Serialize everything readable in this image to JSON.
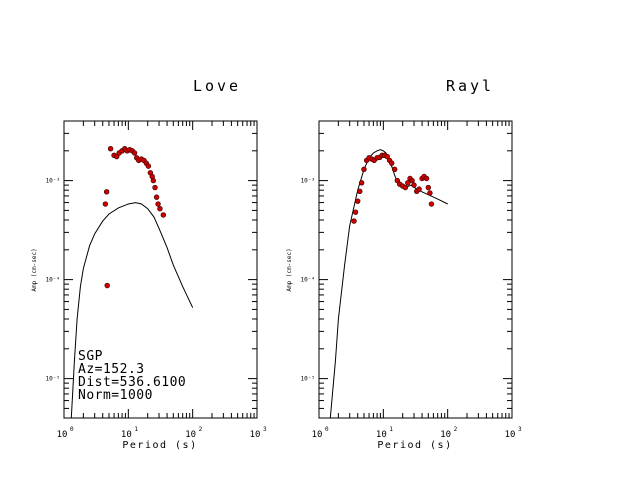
{
  "chart_data": [
    {
      "type": "scatter",
      "title": "Love",
      "xlabel": "Period (s)",
      "ylabel": "Amp (cm-sec)",
      "xscale": "log",
      "yscale": "log",
      "xlim": [
        1,
        1000
      ],
      "ylim": [
        4e-06,
        0.004
      ],
      "x_ticks": [
        {
          "base": "10",
          "exp": "0"
        },
        {
          "base": "10",
          "exp": "1"
        },
        {
          "base": "10",
          "exp": "2"
        },
        {
          "base": "10",
          "exp": "3"
        }
      ],
      "y_ticks": [
        {
          "label": "10⁻³",
          "value": 0.001
        },
        {
          "label": "10⁻⁴",
          "value": 0.0001
        },
        {
          "label": "10⁻⁵",
          "value": 1e-05
        }
      ],
      "annotations": [
        "SGP",
        "Az=152.3",
        "Dist=536.6100",
        "Norm=1000"
      ],
      "series": [
        {
          "kind": "points",
          "color": "#cc0000",
          "points": [
            [
              4.4,
              0.00058
            ],
            [
              4.6,
              0.00077
            ],
            [
              4.7,
              8.7e-05
            ],
            [
              5.3,
              0.0021
            ],
            [
              6.0,
              0.0018
            ],
            [
              6.6,
              0.00175
            ],
            [
              7.2,
              0.0019
            ],
            [
              8.0,
              0.002
            ],
            [
              8.8,
              0.0021
            ],
            [
              9.6,
              0.002
            ],
            [
              10.5,
              0.00205
            ],
            [
              11.5,
              0.002
            ],
            [
              12.5,
              0.0019
            ],
            [
              13.5,
              0.0017
            ],
            [
              14.5,
              0.0016
            ],
            [
              16.0,
              0.00165
            ],
            [
              17.5,
              0.0016
            ],
            [
              19.0,
              0.0015
            ],
            [
              20.5,
              0.0014
            ],
            [
              22.0,
              0.0012
            ],
            [
              23.5,
              0.0011
            ],
            [
              24.5,
              0.001
            ],
            [
              26.0,
              0.00085
            ],
            [
              27.5,
              0.00068
            ],
            [
              29.0,
              0.00058
            ],
            [
              31.0,
              0.00052
            ],
            [
              35.0,
              0.00045
            ]
          ]
        },
        {
          "kind": "line",
          "color": "#000000",
          "points": [
            [
              1.3,
              4e-06
            ],
            [
              1.45,
              1.5e-05
            ],
            [
              1.6,
              4e-05
            ],
            [
              1.8,
              8.5e-05
            ],
            [
              2.0,
              0.00013
            ],
            [
              2.5,
              0.00022
            ],
            [
              3.0,
              0.00029
            ],
            [
              4.0,
              0.00039
            ],
            [
              5.0,
              0.00046
            ],
            [
              7.0,
              0.00053
            ],
            [
              10.0,
              0.00058
            ],
            [
              13.0,
              0.0006
            ],
            [
              16.0,
              0.00058
            ],
            [
              20.0,
              0.00052
            ],
            [
              25.0,
              0.00043
            ],
            [
              30.0,
              0.00033
            ],
            [
              40.0,
              0.00021
            ],
            [
              50.0,
              0.00014
            ],
            [
              70.0,
              8.5e-05
            ],
            [
              100.0,
              5.2e-05
            ]
          ]
        }
      ]
    },
    {
      "type": "scatter",
      "title": "Rayl",
      "xlabel": "Period (s)",
      "ylabel": "Amp (cm-sec)",
      "xscale": "log",
      "yscale": "log",
      "xlim": [
        1,
        1000
      ],
      "ylim": [
        4e-06,
        0.004
      ],
      "x_ticks": [
        {
          "base": "10",
          "exp": "0"
        },
        {
          "base": "10",
          "exp": "1"
        },
        {
          "base": "10",
          "exp": "2"
        },
        {
          "base": "10",
          "exp": "3"
        }
      ],
      "y_ticks": [
        {
          "label": "10⁻³",
          "value": 0.001
        },
        {
          "label": "10⁻⁴",
          "value": 0.0001
        },
        {
          "label": "10⁻⁵",
          "value": 1e-05
        }
      ],
      "series": [
        {
          "kind": "points",
          "color": "#cc0000",
          "points": [
            [
              3.5,
              0.00039
            ],
            [
              3.7,
              0.00048
            ],
            [
              4.0,
              0.00062
            ],
            [
              4.3,
              0.00078
            ],
            [
              4.6,
              0.00095
            ],
            [
              5.0,
              0.0013
            ],
            [
              5.5,
              0.0016
            ],
            [
              6.0,
              0.0017
            ],
            [
              6.6,
              0.00165
            ],
            [
              7.2,
              0.0016
            ],
            [
              8.0,
              0.0017
            ],
            [
              8.8,
              0.00172
            ],
            [
              9.6,
              0.0018
            ],
            [
              10.5,
              0.0018
            ],
            [
              11.5,
              0.00175
            ],
            [
              12.5,
              0.0016
            ],
            [
              13.5,
              0.0015
            ],
            [
              15.0,
              0.0013
            ],
            [
              16.5,
              0.001
            ],
            [
              18.0,
              0.00092
            ],
            [
              20.0,
              0.00088
            ],
            [
              22.0,
              0.00085
            ],
            [
              24.0,
              0.00095
            ],
            [
              26.0,
              0.00105
            ],
            [
              28.0,
              0.001
            ],
            [
              30.0,
              0.0009
            ],
            [
              33.0,
              0.00078
            ],
            [
              36.0,
              0.00082
            ],
            [
              40.0,
              0.00105
            ],
            [
              43.0,
              0.0011
            ],
            [
              47.0,
              0.00105
            ],
            [
              50.0,
              0.00085
            ],
            [
              53.0,
              0.00075
            ],
            [
              56.0,
              0.00058
            ]
          ]
        },
        {
          "kind": "line",
          "color": "#000000",
          "points": [
            [
              1.5,
              4e-06
            ],
            [
              1.8,
              1.5e-05
            ],
            [
              2.0,
              4e-05
            ],
            [
              2.5,
              0.00014
            ],
            [
              3.0,
              0.00035
            ],
            [
              4.0,
              0.0008
            ],
            [
              5.0,
              0.0013
            ],
            [
              6.0,
              0.0017
            ],
            [
              7.0,
              0.0019
            ],
            [
              8.0,
              0.002
            ],
            [
              9.0,
              0.00205
            ],
            [
              10.0,
              0.002
            ],
            [
              11.0,
              0.0019
            ],
            [
              12.5,
              0.0016
            ],
            [
              14.0,
              0.0013
            ],
            [
              16.0,
              0.001
            ],
            [
              18.0,
              0.00088
            ],
            [
              22.0,
              0.00085
            ],
            [
              27.0,
              0.0009
            ],
            [
              35.0,
              0.0008
            ],
            [
              50.0,
              0.00072
            ],
            [
              70.0,
              0.00065
            ],
            [
              100.0,
              0.00058
            ]
          ]
        }
      ]
    }
  ]
}
